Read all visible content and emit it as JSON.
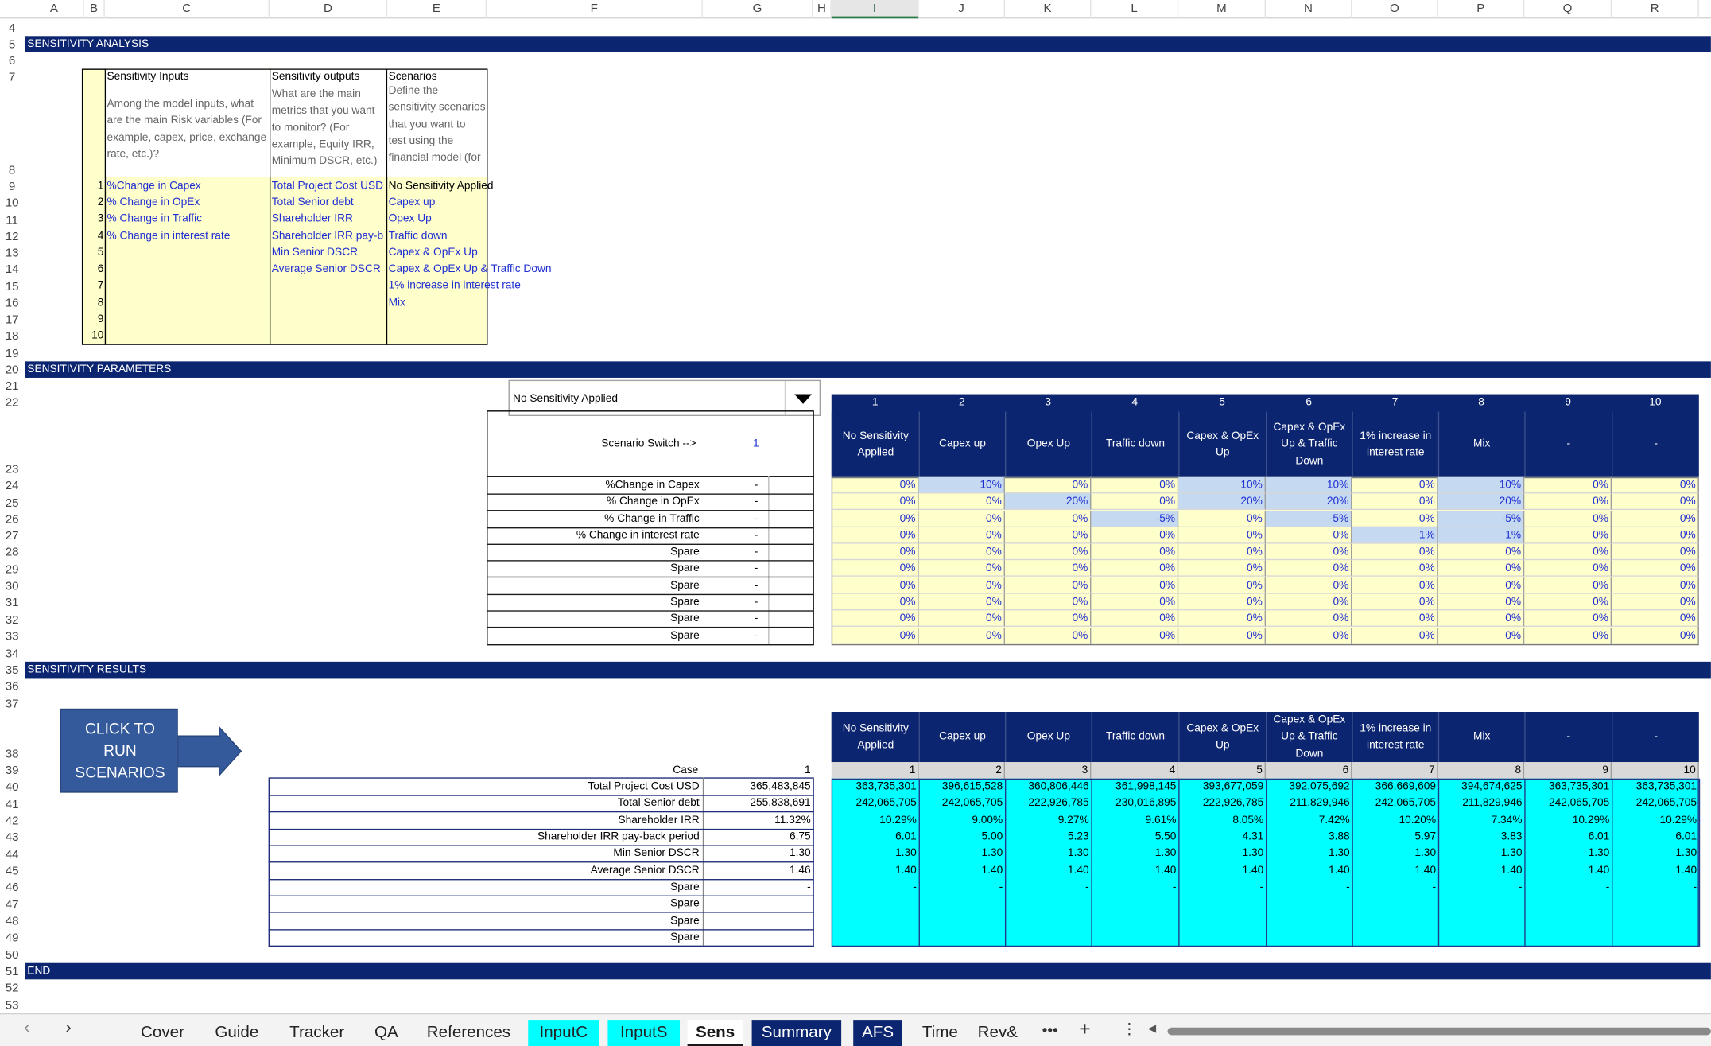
{
  "columns": [
    "A",
    "B",
    "C",
    "D",
    "E",
    "F",
    "G",
    "H",
    "I",
    "J",
    "K",
    "L",
    "M",
    "N",
    "O",
    "P",
    "Q",
    "R"
  ],
  "rows": [
    "4",
    "5",
    "6",
    "7",
    "8",
    "9",
    "10",
    "11",
    "12",
    "13",
    "14",
    "15",
    "16",
    "17",
    "18",
    "19",
    "20",
    "21",
    "22",
    "23",
    "24",
    "25",
    "26",
    "27",
    "28",
    "29",
    "30",
    "31",
    "32",
    "33",
    "34",
    "35",
    "36",
    "37",
    "38",
    "39",
    "40",
    "41",
    "42",
    "43",
    "44",
    "45",
    "46",
    "47",
    "48",
    "49",
    "50",
    "51",
    "52",
    "53"
  ],
  "banners": {
    "analysis": "SENSITIVITY ANALYSIS",
    "parameters": "SENSITIVITY PARAMETERS",
    "results": "SENSITIVITY RESULTS",
    "end": "END"
  },
  "inputs_box": {
    "inputs_title": "Sensitivity Inputs",
    "inputs_desc": "Among the model inputs, what are the main Risk variables (For example, capex, price, exchange rate, etc.)?",
    "outputs_title": "Sensitivity outputs",
    "outputs_desc": "What are the main metrics that you want to monitor? (For example, Equity IRR, Minimum DSCR, etc.)",
    "scenarios_title": "Scenarios",
    "scenarios_desc": "Define the sensitivity scenarios that you want to test using the financial model (for",
    "numbers": [
      "1",
      "2",
      "3",
      "4",
      "5",
      "6",
      "7",
      "8",
      "9",
      "10"
    ],
    "inputs": [
      "%Change in Capex",
      "% Change in OpEx",
      "% Change in Traffic",
      "% Change in interest rate"
    ],
    "outputs": [
      "Total Project Cost USD",
      "Total Senior debt",
      "Shareholder IRR",
      "Shareholder IRR pay-b",
      "Min Senior DSCR",
      "Average Senior DSCR"
    ],
    "scenarios": [
      "No Sensitivity Applied",
      "Capex up",
      "Opex Up",
      "Traffic down",
      "Capex & OpEx Up",
      "Capex & OpEx Up & Traffic Down",
      "1% increase in interest rate",
      "Mix"
    ]
  },
  "dropdown": {
    "value": "No Sensitivity Applied"
  },
  "scenario_switch": {
    "label": "Scenario Switch -->",
    "value": "1"
  },
  "param_labels": [
    "%Change in Capex",
    "% Change in OpEx",
    "% Change in Traffic",
    "% Change in interest rate",
    "Spare",
    "Spare",
    "Spare",
    "Spare",
    "Spare",
    "Spare"
  ],
  "dash": "-",
  "scenario_numbers": [
    "1",
    "2",
    "3",
    "4",
    "5",
    "6",
    "7",
    "8",
    "9",
    "10"
  ],
  "scenario_names": [
    "No Sensitivity Applied",
    "Capex up",
    "Opex Up",
    "Traffic down",
    "Capex & OpEx Up",
    "Capex & OpEx Up & Traffic Down",
    "1% increase in interest rate",
    "Mix",
    "-",
    "-"
  ],
  "param_values": [
    [
      "0%",
      "10%",
      "0%",
      "0%",
      "10%",
      "10%",
      "0%",
      "10%",
      "0%",
      "0%"
    ],
    [
      "0%",
      "0%",
      "20%",
      "0%",
      "20%",
      "20%",
      "0%",
      "20%",
      "0%",
      "0%"
    ],
    [
      "0%",
      "0%",
      "0%",
      "-5%",
      "0%",
      "-5%",
      "0%",
      "-5%",
      "0%",
      "0%"
    ],
    [
      "0%",
      "0%",
      "0%",
      "0%",
      "0%",
      "0%",
      "1%",
      "1%",
      "0%",
      "0%"
    ],
    [
      "0%",
      "0%",
      "0%",
      "0%",
      "0%",
      "0%",
      "0%",
      "0%",
      "0%",
      "0%"
    ],
    [
      "0%",
      "0%",
      "0%",
      "0%",
      "0%",
      "0%",
      "0%",
      "0%",
      "0%",
      "0%"
    ],
    [
      "0%",
      "0%",
      "0%",
      "0%",
      "0%",
      "0%",
      "0%",
      "0%",
      "0%",
      "0%"
    ],
    [
      "0%",
      "0%",
      "0%",
      "0%",
      "0%",
      "0%",
      "0%",
      "0%",
      "0%",
      "0%"
    ],
    [
      "0%",
      "0%",
      "0%",
      "0%",
      "0%",
      "0%",
      "0%",
      "0%",
      "0%",
      "0%"
    ],
    [
      "0%",
      "0%",
      "0%",
      "0%",
      "0%",
      "0%",
      "0%",
      "0%",
      "0%",
      "0%"
    ]
  ],
  "run_button": {
    "label": "CLICK TO RUN SCENARIOS"
  },
  "results": {
    "case_label": "Case",
    "case_value": "1",
    "labels": [
      "Total Project Cost USD",
      "Total Senior debt",
      "Shareholder IRR",
      "Shareholder IRR pay-back period",
      "Min Senior DSCR",
      "Average Senior DSCR",
      "Spare",
      "Spare",
      "Spare",
      "Spare"
    ],
    "current": [
      "365,483,845",
      "255,838,691",
      "11.32%",
      "6.75",
      "1.30",
      "1.46",
      "-",
      "",
      "",
      ""
    ],
    "scenario_values": [
      [
        "363,735,301",
        "396,615,528",
        "360,806,446",
        "361,998,145",
        "393,677,059",
        "392,075,692",
        "366,669,609",
        "394,674,625",
        "363,735,301",
        "363,735,301"
      ],
      [
        "242,065,705",
        "242,065,705",
        "222,926,785",
        "230,016,895",
        "222,926,785",
        "211,829,946",
        "242,065,705",
        "211,829,946",
        "242,065,705",
        "242,065,705"
      ],
      [
        "10.29%",
        "9.00%",
        "9.27%",
        "9.61%",
        "8.05%",
        "7.42%",
        "10.20%",
        "7.34%",
        "10.29%",
        "10.29%"
      ],
      [
        "6.01",
        "5.00",
        "5.23",
        "5.50",
        "4.31",
        "3.88",
        "5.97",
        "3.83",
        "6.01",
        "6.01"
      ],
      [
        "1.30",
        "1.30",
        "1.30",
        "1.30",
        "1.30",
        "1.30",
        "1.30",
        "1.30",
        "1.30",
        "1.30"
      ],
      [
        "1.40",
        "1.40",
        "1.40",
        "1.40",
        "1.40",
        "1.40",
        "1.40",
        "1.40",
        "1.40",
        "1.40"
      ],
      [
        "-",
        "-",
        "-",
        "-",
        "-",
        "-",
        "-",
        "-",
        "-",
        "-"
      ]
    ]
  },
  "tabs": [
    "Cover",
    "Guide",
    "Tracker",
    "QA",
    "References",
    "InputC",
    "InputS",
    "Sens",
    "Summary",
    "AFS",
    "Time",
    "Rev&"
  ],
  "active_tab": "Sens",
  "colors": {
    "banner": "#0c2570",
    "input_fill": "#ffffcc",
    "result_fill": "#00ffff",
    "highlight": "#c5d9f1",
    "tab_cyan": "#00ffff",
    "tab_navy": "#0c2570"
  }
}
